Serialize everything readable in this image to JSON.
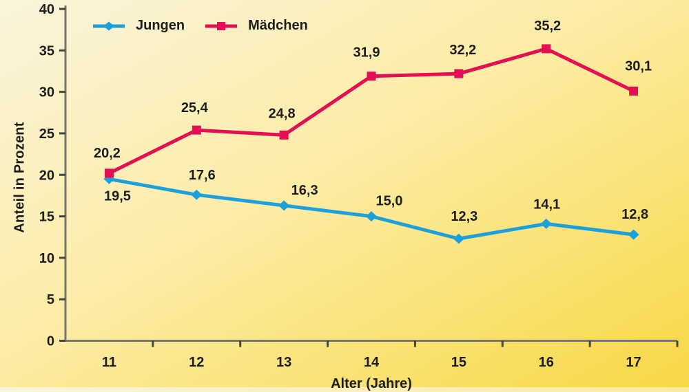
{
  "chart_data": {
    "type": "line",
    "title": "",
    "xlabel": "Alter (Jahre)",
    "ylabel": "Anteil in Prozent",
    "x_categories": [
      "11",
      "12",
      "13",
      "14",
      "15",
      "16",
      "17"
    ],
    "y_ticks": [
      "0",
      "5",
      "10",
      "15",
      "20",
      "25",
      "30",
      "35",
      "40"
    ],
    "ylim": [
      0,
      40
    ],
    "grid": false,
    "legend_position": "top-left",
    "series": [
      {
        "name": "Jungen",
        "color": "#1ca0dc",
        "marker": "diamond",
        "values": [
          19.5,
          17.6,
          16.3,
          15.0,
          12.3,
          14.1,
          12.8
        ],
        "labels": [
          "19,5",
          "17,6",
          "16,3",
          "15,0",
          "12,3",
          "14,1",
          "12,8"
        ],
        "label_offsets": [
          [
            12,
            25
          ],
          [
            8,
            -28
          ],
          [
            30,
            -22
          ],
          [
            26,
            -22
          ],
          [
            8,
            -32
          ],
          [
            1,
            -28
          ],
          [
            2,
            -29
          ]
        ]
      },
      {
        "name": "Mädchen",
        "color": "#e40e52",
        "marker": "square",
        "values": [
          20.2,
          25.4,
          24.8,
          31.9,
          32.2,
          35.2,
          30.1
        ],
        "labels": [
          "20,2",
          "25,4",
          "24,8",
          "31,9",
          "32,2",
          "35,2",
          "30,1"
        ],
        "label_offsets": [
          [
            -3,
            -29
          ],
          [
            -3,
            -32
          ],
          [
            -3,
            -31
          ],
          [
            -7,
            -34
          ],
          [
            6,
            -34
          ],
          [
            2,
            -33
          ],
          [
            7,
            -36
          ]
        ]
      }
    ],
    "colors": {
      "text": "#1d1d1b",
      "axis": "#75756e",
      "tick": "#45453f",
      "bg_top": "#faf4dc",
      "bg_bottom": "#f8d845"
    }
  }
}
